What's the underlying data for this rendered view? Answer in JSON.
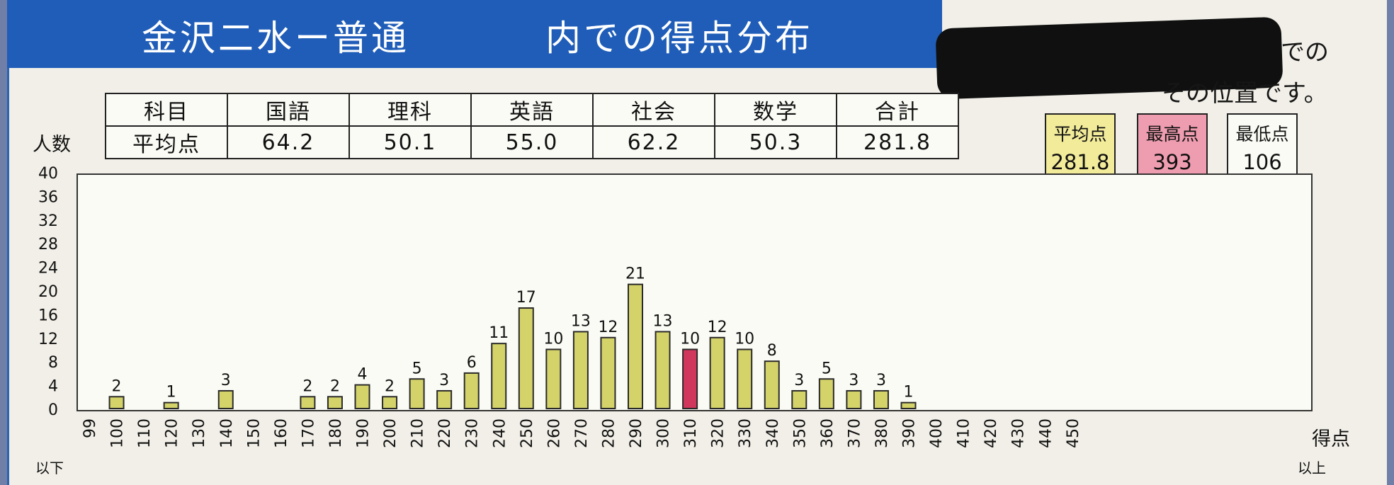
{
  "title": {
    "school": "金沢二水ー普通",
    "distribution": "内での得点分布"
  },
  "note": {
    "line1": "での",
    "line2": "その位置です。"
  },
  "subject_table": {
    "header": [
      "科目",
      "国語",
      "理科",
      "英語",
      "社会",
      "数学",
      "合計"
    ],
    "row": [
      "平均点",
      "64.2",
      "50.1",
      "55.0",
      "62.2",
      "50.3",
      "281.8"
    ]
  },
  "stats": {
    "avg_label": "平均点",
    "avg_value": "281.8",
    "max_label": "最高点",
    "max_value": "393",
    "min_label": "最低点",
    "min_value": "106"
  },
  "colors": {
    "bar": "#d4d36a",
    "highlight_bar": "#d1375c",
    "avg_box": "#f2ec9a",
    "max_box": "#ee9db0",
    "title_bar": "#1f5db8"
  },
  "chart_data": {
    "type": "bar",
    "ylabel": "人数",
    "xlabel": "得点",
    "x_first_note": "以下",
    "x_last_note": "以上",
    "ylim": [
      0,
      40
    ],
    "yticks": [
      0,
      4,
      8,
      12,
      16,
      20,
      24,
      28,
      32,
      36,
      40
    ],
    "categories": [
      "99",
      "100",
      "110",
      "120",
      "130",
      "140",
      "150",
      "160",
      "170",
      "180",
      "190",
      "200",
      "210",
      "220",
      "230",
      "240",
      "250",
      "260",
      "270",
      "280",
      "290",
      "300",
      "310",
      "320",
      "330",
      "340",
      "350",
      "360",
      "370",
      "380",
      "390",
      "400",
      "410",
      "420",
      "430",
      "440",
      "450"
    ],
    "values": [
      0,
      2,
      0,
      1,
      0,
      3,
      0,
      0,
      2,
      2,
      4,
      2,
      5,
      3,
      6,
      11,
      17,
      10,
      13,
      12,
      21,
      13,
      10,
      12,
      10,
      8,
      3,
      5,
      3,
      3,
      1,
      0,
      0,
      0,
      0,
      0,
      0
    ],
    "highlight_category": "310",
    "grid": false,
    "legend": "none"
  }
}
